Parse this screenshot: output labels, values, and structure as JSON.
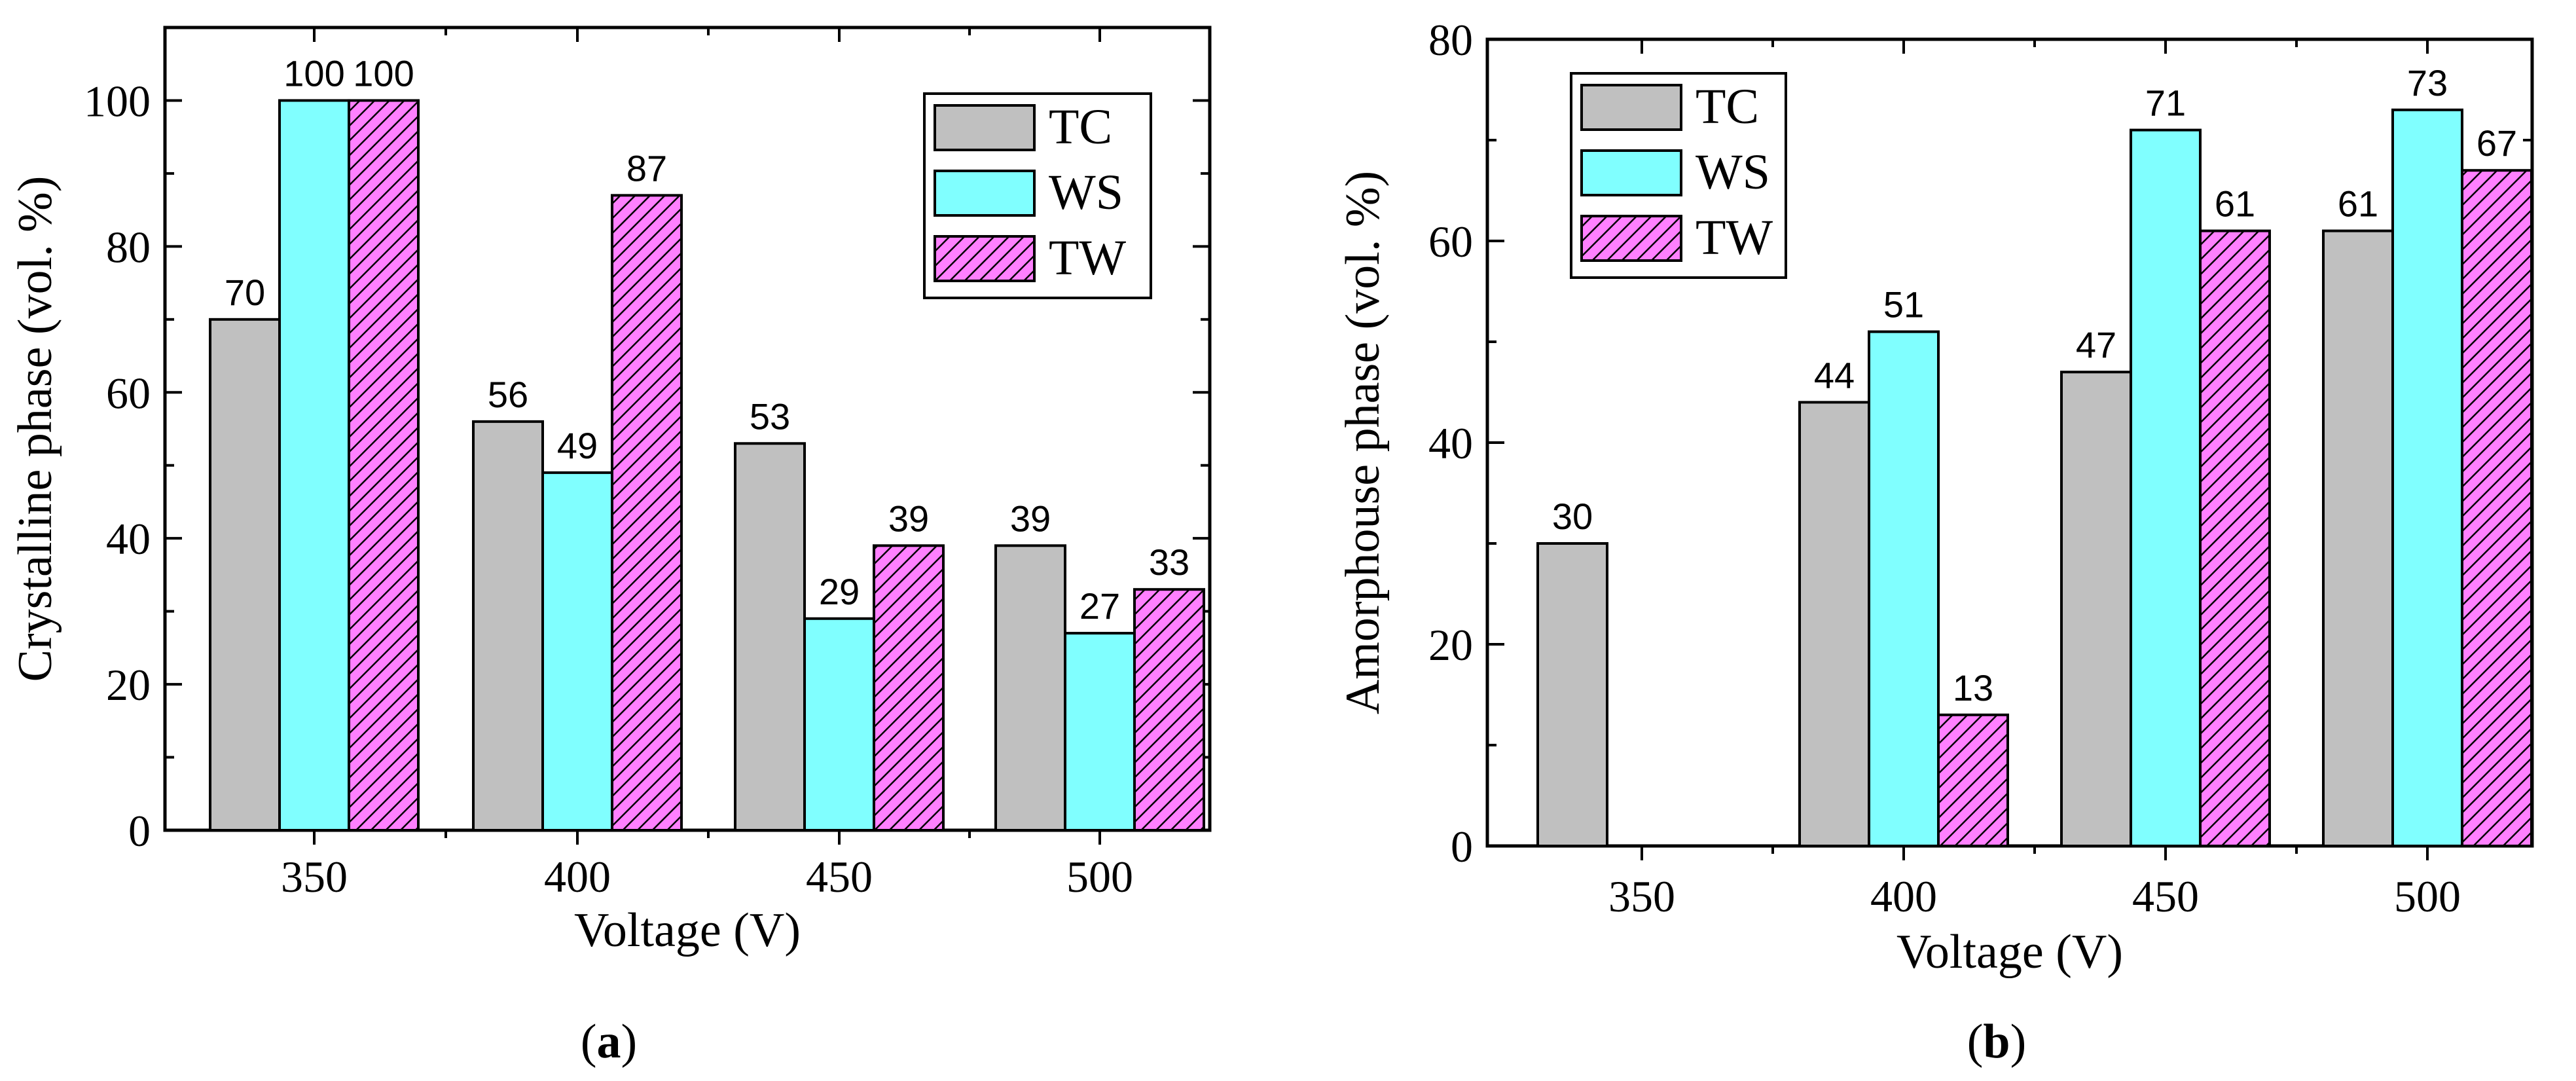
{
  "colors": {
    "TC": "#c0c0c0",
    "WS": "#80ffff",
    "TW": "#ff80ff",
    "TW_hatch": "#000000"
  },
  "chart_data": [
    {
      "id": "a",
      "type": "bar",
      "caption_letter": "a",
      "caption_open": "(",
      "caption_close": ")",
      "categories": [
        "350",
        "400",
        "450",
        "500"
      ],
      "series": [
        {
          "name": "TC",
          "values": [
            70,
            56,
            53,
            39
          ]
        },
        {
          "name": "WS",
          "values": [
            100,
            49,
            29,
            27
          ]
        },
        {
          "name": "TW",
          "values": [
            100,
            87,
            39,
            33
          ]
        }
      ],
      "xlabel": "Voltage (V)",
      "ylabel": "Crystalline phase (vol. %)",
      "ylim": [
        0,
        110
      ],
      "yticks": [
        0,
        20,
        40,
        60,
        80,
        100
      ],
      "legend_position": "top-right"
    },
    {
      "id": "b",
      "type": "bar",
      "caption_letter": "b",
      "caption_open": "(",
      "caption_close": ")",
      "categories": [
        "350",
        "400",
        "450",
        "500"
      ],
      "series": [
        {
          "name": "TC",
          "values": [
            30,
            44,
            47,
            61
          ]
        },
        {
          "name": "WS",
          "values": [
            null,
            51,
            71,
            73
          ]
        },
        {
          "name": "TW",
          "values": [
            null,
            13,
            61,
            67
          ]
        }
      ],
      "xlabel": "Voltage (V)",
      "ylabel": "Amorphouse phase (vol. %)",
      "ylim": [
        0,
        80
      ],
      "yticks": [
        0,
        20,
        40,
        60,
        80
      ],
      "legend_position": "top-left"
    }
  ]
}
